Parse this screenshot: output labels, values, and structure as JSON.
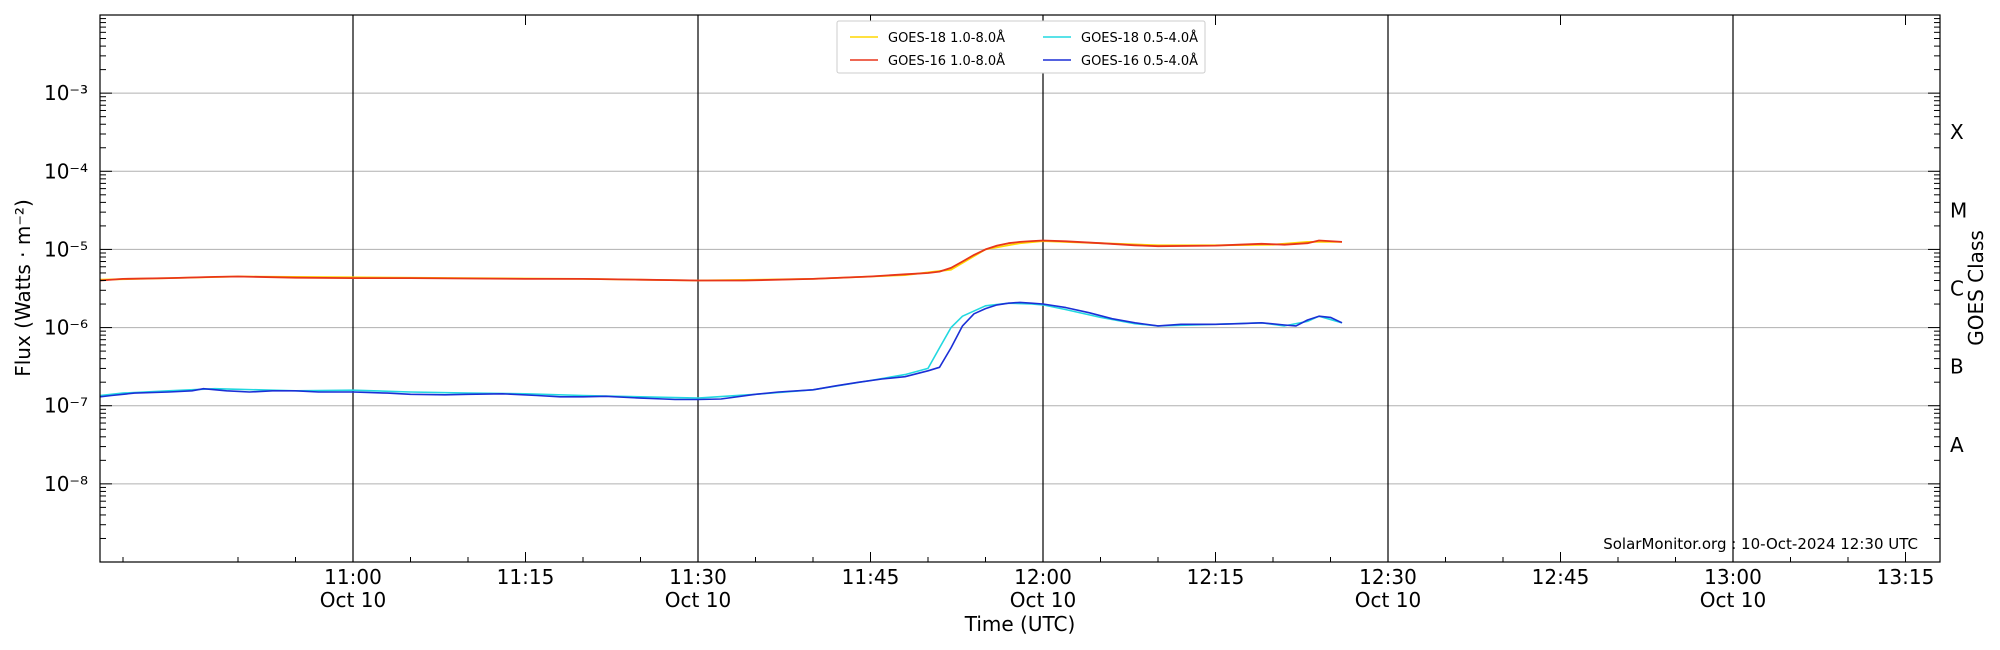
{
  "chart_data": {
    "type": "line",
    "xlabel": "Time (UTC)",
    "ylabel": "Flux (Watts · m⁻²)",
    "y2label": "GOES Class",
    "yscale": "log",
    "ylim": [
      1e-09,
      0.01
    ],
    "xlim": [
      "10:38",
      "13:18"
    ],
    "grid": "horizontal at decades, vertical at half-hours",
    "legend_position": "top-center",
    "watermark": "SolarMonitor.org : 10-Oct-2024 12:30 UTC",
    "x_ticks": [
      {
        "time": "11:00",
        "label": "11:00",
        "sublabel": "Oct 10"
      },
      {
        "time": "11:15",
        "label": "11:15",
        "sublabel": ""
      },
      {
        "time": "11:30",
        "label": "11:30",
        "sublabel": "Oct 10"
      },
      {
        "time": "11:45",
        "label": "11:45",
        "sublabel": ""
      },
      {
        "time": "12:00",
        "label": "12:00",
        "sublabel": "Oct 10"
      },
      {
        "time": "12:15",
        "label": "12:15",
        "sublabel": ""
      },
      {
        "time": "12:30",
        "label": "12:30",
        "sublabel": "Oct 10"
      },
      {
        "time": "12:45",
        "label": "12:45",
        "sublabel": ""
      },
      {
        "time": "13:00",
        "label": "13:00",
        "sublabel": "Oct 10"
      },
      {
        "time": "13:15",
        "label": "13:15",
        "sublabel": ""
      }
    ],
    "vertical_lines": [
      "11:00",
      "11:30",
      "12:00",
      "12:30",
      "13:00"
    ],
    "y_ticks": [
      {
        "exp": -8,
        "label": "10⁻⁸"
      },
      {
        "exp": -7,
        "label": "10⁻⁷"
      },
      {
        "exp": -6,
        "label": "10⁻⁶"
      },
      {
        "exp": -5,
        "label": "10⁻⁵"
      },
      {
        "exp": -4,
        "label": "10⁻⁴"
      },
      {
        "exp": -3,
        "label": "10⁻³"
      }
    ],
    "goes_classes": [
      {
        "label": "A",
        "exp": -7.5
      },
      {
        "label": "B",
        "exp": -6.5
      },
      {
        "label": "C",
        "exp": -5.5
      },
      {
        "label": "M",
        "exp": -4.5
      },
      {
        "label": "X",
        "exp": -3.5
      }
    ],
    "series": [
      {
        "name": "GOES-18 1.0-8.0Å",
        "color": "#ffd700",
        "x": [
          "10:38",
          "10:44",
          "10:50",
          "11:00",
          "11:10",
          "11:20",
          "11:30",
          "11:40",
          "11:48",
          "11:52",
          "11:55",
          "11:58",
          "12:00",
          "12:05",
          "12:10",
          "12:15",
          "12:20",
          "12:23",
          "12:26"
        ],
        "values": [
          4.1e-06,
          4.3e-06,
          4.5e-06,
          4.4e-06,
          4.3e-06,
          4.2e-06,
          4e-06,
          4.2e-06,
          4.7e-06,
          5.5e-06,
          1e-05,
          1.2e-05,
          1.28e-05,
          1.2e-05,
          1.13e-05,
          1.13e-05,
          1.15e-05,
          1.25e-05,
          1.25e-05
        ]
      },
      {
        "name": "GOES-16 1.0-8.0Å",
        "color": "#e8351b",
        "x": [
          "10:38",
          "10:40",
          "10:44",
          "10:48",
          "10:50",
          "10:55",
          "11:00",
          "11:05",
          "11:10",
          "11:15",
          "11:20",
          "11:25",
          "11:30",
          "11:34",
          "11:40",
          "11:45",
          "11:48",
          "11:50",
          "11:51",
          "11:52",
          "11:53",
          "11:54",
          "11:55",
          "11:56",
          "11:57",
          "11:58",
          "11:59",
          "12:00",
          "12:02",
          "12:05",
          "12:08",
          "12:10",
          "12:15",
          "12:17",
          "12:19",
          "12:21",
          "12:23",
          "12:24",
          "12:26"
        ],
        "values": [
          4e-06,
          4.2e-06,
          4.3e-06,
          4.45e-06,
          4.5e-06,
          4.35e-06,
          4.3e-06,
          4.3e-06,
          4.25e-06,
          4.2e-06,
          4.2e-06,
          4.1e-06,
          4e-06,
          4e-06,
          4.2e-06,
          4.5e-06,
          4.8e-06,
          5e-06,
          5.2e-06,
          5.8e-06,
          7e-06,
          8.5e-06,
          1e-05,
          1.12e-05,
          1.2e-05,
          1.25e-05,
          1.28e-05,
          1.3e-05,
          1.27e-05,
          1.2e-05,
          1.13e-05,
          1.1e-05,
          1.12e-05,
          1.15e-05,
          1.18e-05,
          1.15e-05,
          1.2e-05,
          1.3e-05,
          1.25e-05
        ]
      },
      {
        "name": "GOES-18 0.5-4.0Å",
        "color": "#22d8e0",
        "x": [
          "10:38",
          "10:40",
          "10:44",
          "10:48",
          "10:50",
          "10:55",
          "11:00",
          "11:05",
          "11:10",
          "11:15",
          "11:20",
          "11:25",
          "11:30",
          "11:35",
          "11:40",
          "11:45",
          "11:48",
          "11:50",
          "11:51",
          "11:52",
          "11:53",
          "11:55",
          "11:57",
          "11:59",
          "12:00",
          "12:02",
          "12:05",
          "12:08",
          "12:10",
          "12:15",
          "12:19",
          "12:21",
          "12:23",
          "12:24",
          "12:26"
        ],
        "values": [
          1.35e-07,
          1.45e-07,
          1.55e-07,
          1.65e-07,
          1.62e-07,
          1.55e-07,
          1.58e-07,
          1.5e-07,
          1.45e-07,
          1.42e-07,
          1.35e-07,
          1.3e-07,
          1.25e-07,
          1.4e-07,
          1.6e-07,
          2.1e-07,
          2.5e-07,
          3e-07,
          5.5e-07,
          1e-06,
          1.4e-06,
          1.9e-06,
          2.05e-06,
          2e-06,
          1.95e-06,
          1.7e-06,
          1.35e-06,
          1.12e-06,
          1.05e-06,
          1.1e-06,
          1.15e-06,
          1.05e-06,
          1.2e-06,
          1.4e-06,
          1.15e-06
        ]
      },
      {
        "name": "GOES-16 0.5-4.0Å",
        "color": "#1b2fd6",
        "x": [
          "10:38",
          "10:39",
          "10:41",
          "10:44",
          "10:46",
          "10:47",
          "10:49",
          "10:51",
          "10:53",
          "10:55",
          "10:57",
          "11:00",
          "11:03",
          "11:05",
          "11:08",
          "11:10",
          "11:13",
          "11:16",
          "11:18",
          "11:20",
          "11:22",
          "11:25",
          "11:27",
          "11:28",
          "11:30",
          "11:32",
          "11:35",
          "11:37",
          "11:40",
          "11:42",
          "11:44",
          "11:46",
          "11:48",
          "11:50",
          "11:51",
          "11:52",
          "11:53",
          "11:54",
          "11:55",
          "11:56",
          "11:57",
          "11:58",
          "11:59",
          "12:00",
          "12:02",
          "12:04",
          "12:06",
          "12:08",
          "12:10",
          "12:12",
          "12:15",
          "12:17",
          "12:19",
          "12:21",
          "12:22",
          "12:23",
          "12:24",
          "12:25",
          "12:26"
        ],
        "values": [
          1.3e-07,
          1.35e-07,
          1.45e-07,
          1.5e-07,
          1.55e-07,
          1.65e-07,
          1.55e-07,
          1.5e-07,
          1.55e-07,
          1.55e-07,
          1.5e-07,
          1.5e-07,
          1.45e-07,
          1.4e-07,
          1.38e-07,
          1.4e-07,
          1.42e-07,
          1.35e-07,
          1.3e-07,
          1.3e-07,
          1.32e-07,
          1.25e-07,
          1.22e-07,
          1.2e-07,
          1.2e-07,
          1.22e-07,
          1.4e-07,
          1.5e-07,
          1.6e-07,
          1.8e-07,
          2e-07,
          2.2e-07,
          2.35e-07,
          2.8e-07,
          3.1e-07,
          5.5e-07,
          1.05e-06,
          1.5e-06,
          1.75e-06,
          1.95e-06,
          2.05e-06,
          2.1e-06,
          2.05e-06,
          2e-06,
          1.8e-06,
          1.55e-06,
          1.3e-06,
          1.15e-06,
          1.05e-06,
          1.1e-06,
          1.1e-06,
          1.12e-06,
          1.15e-06,
          1.08e-06,
          1.05e-06,
          1.25e-06,
          1.4e-06,
          1.35e-06,
          1.15e-06
        ]
      }
    ]
  }
}
